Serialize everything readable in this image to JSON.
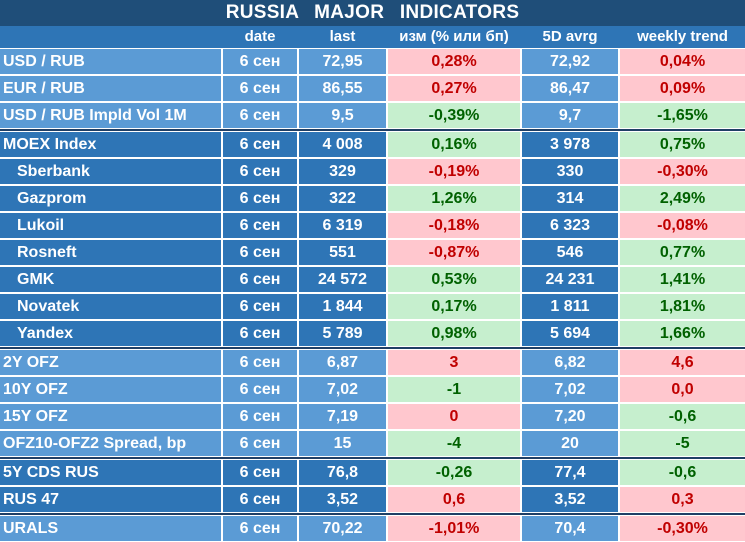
{
  "title": "RUSSIA   MAJOR   INDICATORS",
  "columns": {
    "name": "",
    "date": "date",
    "last": "last",
    "change": "изм (% или бп)",
    "avg5d": "5D avrg",
    "weekly": "weekly trend"
  },
  "colors": {
    "group_light": "#5b9bd5",
    "group_dark": "#2e75b6",
    "title_bg": "#1f4e79",
    "negative_bg": "#ffc7ce",
    "negative_text": "#c00000",
    "positive_bg": "#c6efce",
    "positive_text": "#006100"
  },
  "groups": [
    {
      "shade": "light",
      "rows": [
        {
          "name": "USD / RUB",
          "date": "6 сен",
          "last": "72,95",
          "change": "0,28%",
          "change_sign": "neg",
          "avg5d": "72,92",
          "weekly": "0,04%",
          "weekly_sign": "neg"
        },
        {
          "name": "EUR / RUB",
          "date": "6 сен",
          "last": "86,55",
          "change": "0,27%",
          "change_sign": "neg",
          "avg5d": "86,47",
          "weekly": "0,09%",
          "weekly_sign": "neg"
        },
        {
          "name": "USD / RUB Impld Vol 1M",
          "date": "6 сен",
          "last": "9,5",
          "change": "-0,39%",
          "change_sign": "pos",
          "avg5d": "9,7",
          "weekly": "-1,65%",
          "weekly_sign": "pos"
        }
      ]
    },
    {
      "shade": "dark",
      "rows": [
        {
          "name": "MOEX Index",
          "date": "6 сен",
          "last": "4 008",
          "change": "0,16%",
          "change_sign": "pos",
          "avg5d": "3 978",
          "weekly": "0,75%",
          "weekly_sign": "pos"
        },
        {
          "name": "Sberbank",
          "indent": true,
          "date": "6 сен",
          "last": "329",
          "change": "-0,19%",
          "change_sign": "neg",
          "avg5d": "330",
          "weekly": "-0,30%",
          "weekly_sign": "neg"
        },
        {
          "name": "Gazprom",
          "indent": true,
          "date": "6 сен",
          "last": "322",
          "change": "1,26%",
          "change_sign": "pos",
          "avg5d": "314",
          "weekly": "2,49%",
          "weekly_sign": "pos"
        },
        {
          "name": "Lukoil",
          "indent": true,
          "date": "6 сен",
          "last": "6 319",
          "change": "-0,18%",
          "change_sign": "neg",
          "avg5d": "6 323",
          "weekly": "-0,08%",
          "weekly_sign": "neg"
        },
        {
          "name": "Rosneft",
          "indent": true,
          "date": "6 сен",
          "last": "551",
          "change": "-0,87%",
          "change_sign": "neg",
          "avg5d": "546",
          "weekly": "0,77%",
          "weekly_sign": "pos"
        },
        {
          "name": "GMK",
          "indent": true,
          "date": "6 сен",
          "last": "24 572",
          "change": "0,53%",
          "change_sign": "pos",
          "avg5d": "24 231",
          "weekly": "1,41%",
          "weekly_sign": "pos"
        },
        {
          "name": "Novatek",
          "indent": true,
          "date": "6 сен",
          "last": "1 844",
          "change": "0,17%",
          "change_sign": "pos",
          "avg5d": "1 811",
          "weekly": "1,81%",
          "weekly_sign": "pos"
        },
        {
          "name": "Yandex",
          "indent": true,
          "date": "6 сен",
          "last": "5 789",
          "change": "0,98%",
          "change_sign": "pos",
          "avg5d": "5 694",
          "weekly": "1,66%",
          "weekly_sign": "pos"
        }
      ]
    },
    {
      "shade": "light",
      "rows": [
        {
          "name": "2Y OFZ",
          "date": "6 сен",
          "last": "6,87",
          "change": "3",
          "change_sign": "neg",
          "avg5d": "6,82",
          "weekly": "4,6",
          "weekly_sign": "neg"
        },
        {
          "name": "10Y OFZ",
          "date": "6 сен",
          "last": "7,02",
          "change": "-1",
          "change_sign": "pos",
          "avg5d": "7,02",
          "weekly": "0,0",
          "weekly_sign": "neg"
        },
        {
          "name": "15Y OFZ",
          "date": "6 сен",
          "last": "7,19",
          "change": "0",
          "change_sign": "neg",
          "avg5d": "7,20",
          "weekly": "-0,6",
          "weekly_sign": "pos"
        },
        {
          "name": "OFZ10-OFZ2 Spread, bp",
          "date": "6 сен",
          "last": "15",
          "change": "-4",
          "change_sign": "pos",
          "avg5d": "20",
          "weekly": "-5",
          "weekly_sign": "pos"
        }
      ]
    },
    {
      "shade": "dark",
      "rows": [
        {
          "name": "5Y CDS RUS",
          "date": "6 сен",
          "last": "76,8",
          "change": "-0,26",
          "change_sign": "pos",
          "avg5d": "77,4",
          "weekly": "-0,6",
          "weekly_sign": "pos"
        },
        {
          "name": "RUS 47",
          "date": "6 сен",
          "last": "3,52",
          "change": "0,6",
          "change_sign": "neg",
          "avg5d": "3,52",
          "weekly": "0,3",
          "weekly_sign": "neg"
        }
      ]
    },
    {
      "shade": "light",
      "rows": [
        {
          "name": "URALS",
          "date": "6 сен",
          "last": "70,22",
          "change": "-1,01%",
          "change_sign": "neg",
          "avg5d": "70,4",
          "weekly": "-0,30%",
          "weekly_sign": "neg"
        }
      ]
    }
  ]
}
